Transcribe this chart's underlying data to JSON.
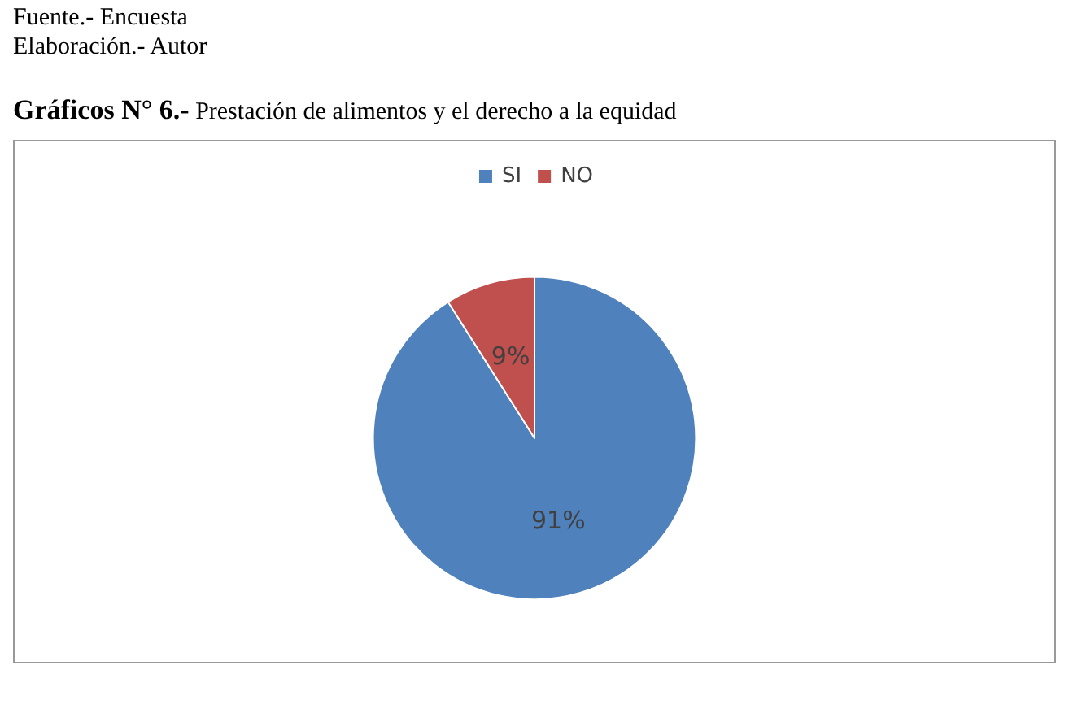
{
  "chart_data": {
    "type": "pie",
    "title": "Gráficos N° 6.-",
    "subtitle": "Prestación de alimentos y el derecho a la equidad",
    "annotations": [
      "Fuente.- Encuesta",
      "Elaboración.- Autor"
    ],
    "categories": [
      "SI",
      "NO"
    ],
    "values": [
      91,
      9
    ],
    "colors": [
      "#4f81bd",
      "#c0504d"
    ],
    "value_labels": [
      "91%",
      "9%"
    ],
    "legend": "top"
  }
}
